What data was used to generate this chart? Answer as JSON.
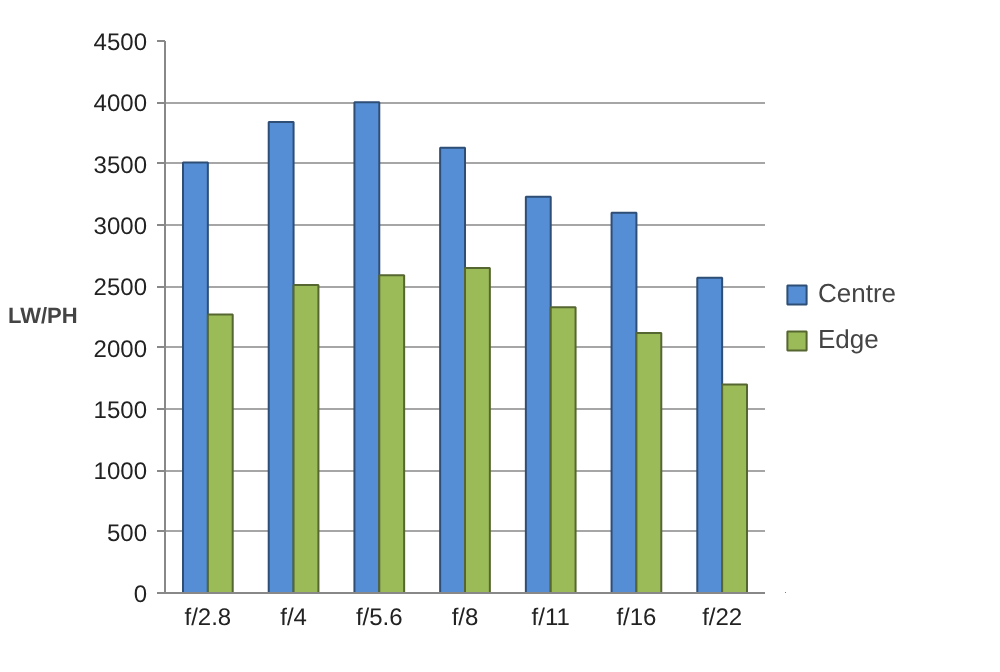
{
  "chart_data": {
    "type": "bar",
    "ylabel": "LW/PH",
    "categories": [
      "f/2.8",
      "f/4",
      "f/5.6",
      "f/8",
      "f/11",
      "f/16",
      "f/22"
    ],
    "series": [
      {
        "name": "Centre",
        "color": "#558ed5",
        "values": [
          3510,
          3840,
          4000,
          3630,
          3230,
          3100,
          2570
        ]
      },
      {
        "name": "Edge",
        "color": "#9bbb59",
        "values": [
          2270,
          2510,
          2590,
          2650,
          2330,
          2120,
          1700
        ]
      }
    ],
    "ylim": [
      0,
      4500
    ],
    "yticks": [
      0,
      500,
      1000,
      1500,
      2000,
      2500,
      3000,
      3500,
      4000,
      4500
    ],
    "grid": "y",
    "legend": "right"
  }
}
